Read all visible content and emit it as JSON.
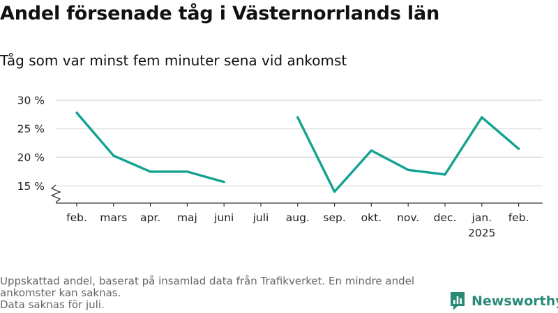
{
  "title": "Andel försenade tåg i Västernorrlands län",
  "subtitle": "Tåg som var minst fem minuter sena vid ankomst",
  "source_lines": [
    "Uppskattad andel, baserat på insamlad data från Trafikverket. En mindre andel ankomster kan saknas.",
    "Data saknas för juli."
  ],
  "brand": {
    "name": "Newsworthy",
    "icon": "newsworthy-logo-icon"
  },
  "colors": {
    "line": "#13a292",
    "grid": "#d9d9d9",
    "axis": "#333333"
  },
  "chart_data": {
    "type": "line",
    "title": "Andel försenade tåg i Västernorrlands län",
    "subtitle": "Tåg som var minst fem minuter sena vid ankomst",
    "xlabel": "",
    "ylabel": "",
    "categories": [
      "feb.",
      "mars",
      "apr.",
      "maj",
      "juni",
      "juli",
      "aug.",
      "sep.",
      "okt.",
      "nov.",
      "dec.",
      "jan.",
      "feb."
    ],
    "category_sublabels": [
      "",
      "",
      "",
      "",
      "",
      "",
      "",
      "",
      "",
      "",
      "",
      "2025",
      ""
    ],
    "series": [
      {
        "values": [
          27.8,
          20.3,
          17.5,
          17.5,
          15.7,
          null,
          27.0,
          14.0,
          21.2,
          17.8,
          17.0,
          27.0,
          21.5
        ]
      }
    ],
    "yticks": [
      15,
      20,
      25,
      30
    ],
    "ytick_labels": [
      "15 %",
      "20 %",
      "25 %",
      "30 %"
    ],
    "ylim": [
      12,
      30
    ],
    "y_axis_break": true,
    "grid": true,
    "legend": "none"
  }
}
